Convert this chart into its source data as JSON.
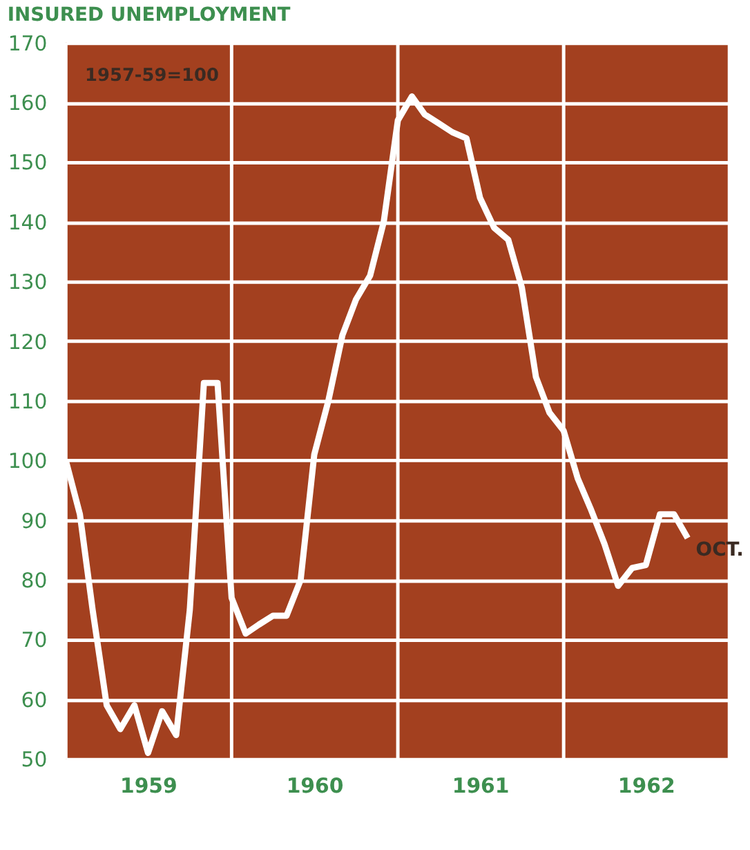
{
  "chart_data": {
    "type": "line",
    "title": "INSURED UNEMPLOYMENT",
    "x": [
      "1959-01",
      "1959-02",
      "1959-03",
      "1959-04",
      "1959-05",
      "1959-06",
      "1959-07",
      "1959-08",
      "1959-09",
      "1959-10",
      "1959-11",
      "1959-12",
      "1960-01",
      "1960-02",
      "1960-03",
      "1960-04",
      "1960-05",
      "1960-06",
      "1960-07",
      "1960-08",
      "1960-09",
      "1960-10",
      "1960-11",
      "1960-12",
      "1961-01",
      "1961-02",
      "1961-03",
      "1961-04",
      "1961-05",
      "1961-06",
      "1961-07",
      "1961-08",
      "1961-09",
      "1961-10",
      "1961-11",
      "1961-12",
      "1962-01",
      "1962-02",
      "1962-03",
      "1962-04",
      "1962-05",
      "1962-06",
      "1962-07",
      "1962-08",
      "1962-09",
      "1962-10"
    ],
    "series": [
      {
        "color": "#ffffff",
        "values": [
          100,
          91,
          75,
          59,
          55,
          59,
          51,
          58,
          54,
          75,
          113,
          113,
          77,
          71,
          72.5,
          74,
          74,
          80,
          101,
          110,
          121,
          127,
          131,
          140,
          157,
          161,
          158,
          156.5,
          155,
          154,
          144,
          139,
          137,
          129,
          114,
          108,
          105,
          97,
          92,
          86,
          79,
          82,
          82.5,
          91,
          91,
          87
        ]
      }
    ],
    "xlim": [
      "1959-01",
      "1963-01"
    ],
    "xticks": [
      {
        "value": "1959-01",
        "label": null
      },
      {
        "value": "1959-07",
        "label": "1959"
      },
      {
        "value": "1960-01",
        "label": null
      },
      {
        "value": "1960-07",
        "label": "1960"
      },
      {
        "value": "1961-01",
        "label": null
      },
      {
        "value": "1961-07",
        "label": "1961"
      },
      {
        "value": "1962-01",
        "label": null
      },
      {
        "value": "1962-07",
        "label": "1962"
      },
      {
        "value": "1963-01",
        "label": null
      }
    ],
    "ylim": [
      50,
      170
    ],
    "yticks": [
      50,
      60,
      70,
      80,
      90,
      100,
      110,
      120,
      130,
      140,
      150,
      160,
      170
    ],
    "grid": true,
    "marker": "none",
    "line_style": "solid",
    "annotations": [
      "1957-59=100",
      {
        "text": "OCT.",
        "x": "1962-10",
        "y": 87
      }
    ]
  }
}
